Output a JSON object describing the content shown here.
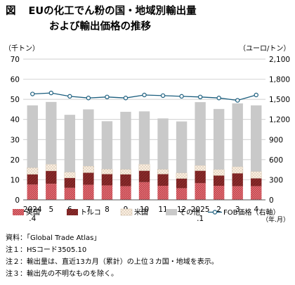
{
  "figure_label": "図",
  "title_line1": "EUの化工でん粉の国・地域別輸出量",
  "title_line2": "および輸出価格の推移",
  "left_unit": "（千トン）",
  "right_unit": "（ユーロ/トン）",
  "source": "資料：「Global Trade Atlas」",
  "notes": [
    "注１：HSコード3505.10",
    "注２：輸出量は、直近13カ月（累計）の上位３カ国・地域を表示。",
    "注３：輸出先の不明なものを除く。"
  ],
  "colors": {
    "uk": "#c4424a",
    "turkey": "#8b2a2a",
    "us": "#fbeee0",
    "other": "#c9c9c9",
    "fob": "#1b5e7e",
    "grid": "#bfbfbf"
  },
  "chart_data": {
    "type": "bar",
    "stacked": true,
    "categories": [
      "2024\n.4",
      "5",
      "6",
      "7",
      "8",
      "9",
      "10",
      "11",
      "12",
      "2025\n.1",
      "2",
      "3",
      "4"
    ],
    "x_unit_label": "（年.月）",
    "series": [
      {
        "name": "英国",
        "key": "uk",
        "pattern": "hatch-small",
        "values": [
          7.6,
          8.0,
          6.0,
          7.5,
          7.2,
          6.8,
          8.8,
          7.0,
          5.8,
          8.3,
          7.0,
          6.8,
          6.8
        ]
      },
      {
        "name": "トルコ",
        "key": "turkey",
        "pattern": "hatch-lines",
        "values": [
          5.1,
          6.4,
          4.9,
          6.0,
          5.6,
          5.9,
          5.7,
          5.8,
          4.8,
          6.2,
          5.1,
          6.4,
          3.9
        ]
      },
      {
        "name": "米国",
        "key": "us",
        "pattern": "dots",
        "values": [
          3.3,
          3.3,
          2.9,
          3.3,
          2.5,
          2.5,
          3.2,
          2.4,
          2.8,
          2.6,
          3.0,
          3.3,
          3.4
        ]
      },
      {
        "name": "その他",
        "key": "other",
        "values": [
          31.0,
          31.0,
          28.5,
          28.2,
          23.8,
          28.6,
          26.3,
          25.3,
          25.6,
          31.5,
          30.1,
          31.5,
          32.9
        ]
      }
    ],
    "line_series": {
      "name": "FOB価格（右軸）",
      "values": [
        1580,
        1595,
        1545,
        1520,
        1535,
        1520,
        1565,
        1555,
        1545,
        1535,
        1520,
        1485,
        1565
      ]
    },
    "y_left": {
      "min": 0,
      "max": 70,
      "ticks": [
        0,
        10,
        20,
        30,
        40,
        50,
        60,
        70
      ]
    },
    "y_right": {
      "min": 0,
      "max": 2100,
      "ticks": [
        0,
        300,
        600,
        900,
        1200,
        1500,
        1800,
        2100
      ]
    },
    "legend_position": "bottom"
  }
}
